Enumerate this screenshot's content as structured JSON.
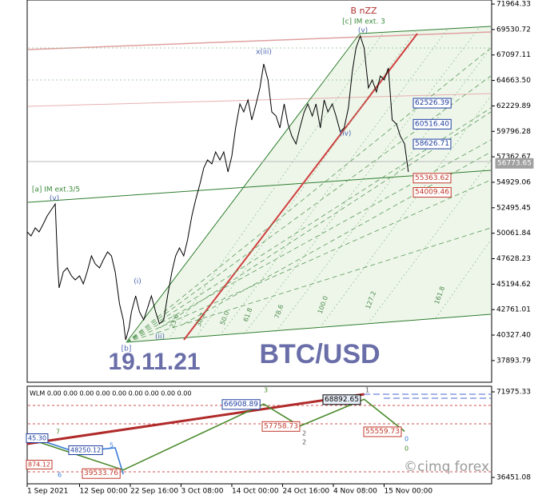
{
  "chart_data": [
    {
      "type": "line",
      "xlim": [
        0,
        97.6
      ],
      "ylim": [
        35820,
        72350
      ],
      "xticks": [
        {
          "value": 0,
          "label": "1 Sep 2021"
        },
        {
          "value": 11,
          "label": "12 Sep 00:00"
        },
        {
          "value": 21.667,
          "label": "22 Sep 16:00"
        },
        {
          "value": 32.333,
          "label": "3 Oct 08:00"
        },
        {
          "value": 43,
          "label": "14 Oct 00:00"
        },
        {
          "value": 53.667,
          "label": "24 Oct 16:00"
        },
        {
          "value": 64.333,
          "label": "4 Nov 08:00"
        },
        {
          "value": 75,
          "label": "15 Nov 00:00"
        }
      ],
      "yticks": [
        71964.33,
        69530.72,
        67097.11,
        {
          "value": 64663.5,
          "label": "64663.50"
        },
        62229.89,
        59796.28,
        57362.67,
        54929.06,
        52495.45,
        50061.84,
        47628.23,
        45194.62,
        42761.01,
        {
          "value": 40327.4,
          "label": "40327.40"
        },
        37893.79
      ],
      "color": "#000000",
      "x": [
        0,
        0.8,
        1.7,
        2.5,
        3.4,
        4.2,
        5.1,
        5.9,
        6.4,
        6.7,
        7.6,
        8.4,
        9.3,
        10.1,
        11.0,
        11.8,
        12.6,
        13.5,
        14.3,
        15.2,
        16.0,
        16.9,
        17.7,
        18.5,
        19.4,
        20.2,
        20.7,
        21.4,
        21.9,
        22.8,
        23.6,
        24.5,
        25.3,
        26.1,
        27.0,
        27.8,
        28.7,
        29.5,
        30.4,
        31.2,
        32.0,
        32.9,
        33.7,
        34.6,
        35.4,
        36.3,
        37.1,
        37.9,
        38.8,
        39.6,
        40.5,
        41.3,
        42.2,
        43.0,
        43.8,
        44.7,
        45.5,
        46.4,
        47.2,
        48.1,
        48.9,
        49.7,
        50.6,
        51.4,
        52.3,
        53.1,
        54.0,
        54.8,
        55.6,
        56.5,
        57.3,
        58.2,
        59.0,
        59.9,
        60.7,
        61.6,
        62.4,
        63.2,
        64.1,
        64.9,
        65.8,
        66.6,
        67.5,
        68.3,
        69.1,
        70.0,
        70.8,
        71.7,
        72.5,
        73.4,
        74.2,
        75.0,
        75.9,
        76.7,
        77.6,
        78.4,
        79.3,
        80.1
      ],
      "values": [
        50186,
        49804,
        50568,
        50186,
        50950,
        51713,
        52326,
        52861,
        47129,
        44837,
        46365,
        46747,
        45983,
        45601,
        45983,
        45219,
        46365,
        47894,
        47129,
        46747,
        47512,
        48276,
        47894,
        46365,
        43308,
        41780,
        39869,
        41016,
        42544,
        44073,
        42544,
        41780,
        42926,
        44073,
        42544,
        41398,
        41780,
        44073,
        46365,
        47894,
        48658,
        47894,
        49422,
        51713,
        53243,
        54771,
        56300,
        57064,
        56682,
        57828,
        57064,
        57828,
        55918,
        57446,
        60121,
        62413,
        61649,
        62796,
        60885,
        62413,
        63942,
        66234,
        64706,
        61649,
        61267,
        60121,
        62413,
        60503,
        59357,
        58592,
        60121,
        61649,
        62413,
        61267,
        62413,
        60121,
        62796,
        61649,
        62413,
        61267,
        59739,
        60121,
        62031,
        65470,
        67763,
        68909,
        67763,
        63942,
        64706,
        63560,
        65088,
        64706,
        65852,
        60885,
        60503,
        59357,
        58592,
        55918
      ],
      "price_labels": [
        62526.39,
        {
          "value": 60516.4,
          "label": "60516.40"
        },
        58626.71,
        55363.62,
        54009.46
      ],
      "price_label_colors": [
        "#1f3f9f",
        "#1f3f9f",
        "#1f3f9f",
        "#c0392b",
        "#c0392b"
      ],
      "last_price": 56773.65,
      "annotations": [
        {
          "text": "B nZZ",
          "color": "#b03030"
        },
        {
          "text": "[c] IM ext. 3",
          "color": "#3a8a3a"
        },
        {
          "text": "(v)",
          "color": "#4a64b0"
        },
        {
          "text": "x(iii)",
          "color": "#4a64b0"
        },
        {
          "text": "(iv)",
          "color": "#4a64b0"
        },
        {
          "text": "[a] IM ext.3/5",
          "color": "#3a8a3a"
        },
        {
          "text": "(v)",
          "color": "#4a64b0"
        },
        {
          "text": "(i)",
          "color": "#4a64b0"
        },
        {
          "text": "(ii)",
          "color": "#4a64b0"
        },
        {
          "text": "[b]",
          "color": "#4a64b0"
        },
        {
          "text": "19.11.21",
          "color": "#6a6ea8"
        },
        {
          "text": "BTC/USD",
          "color": "#6a6ea8"
        },
        {
          "text": "©cimq forex",
          "color": "#9a9a9a"
        }
      ],
      "fib_labels": [
        "23.6",
        "38.2",
        "50.0",
        "61.8",
        "78.6",
        "100.0",
        "127.2",
        "161.8"
      ]
    },
    {
      "type": "line",
      "title": "WLM 0.00 0.00 0.00 0.00 0.00 0.00 0.00 0.00 0.00",
      "xlim": [
        0,
        97.6
      ],
      "ylim": [
        33795,
        74299
      ],
      "yticks": [
        71975.33,
        36451.08
      ],
      "series": [
        {
          "color": "#b02a2a",
          "x": [
            0,
            70.8
          ],
          "values": [
            50395,
            70979
          ]
        },
        {
          "color": "#3b7dd8",
          "x": [
            0,
            10.1,
            18.5,
            20.2
          ],
          "values": [
            53715,
            47075,
            48735,
            37779
          ]
        },
        {
          "color": "#4a8a2a",
          "x": [
            0,
            20.2,
            49.7,
            57.3,
            70.8,
            79.3
          ],
          "values": [
            52718,
            39533.76,
            66908.89,
            57758.73,
            68892.65,
            55559.73
          ]
        }
      ],
      "annotations": [
        "45.30",
        "48250.12",
        "874.12",
        "3",
        "2",
        "2",
        "1",
        "0",
        "0",
        "5",
        "6",
        "7"
      ]
    }
  ]
}
